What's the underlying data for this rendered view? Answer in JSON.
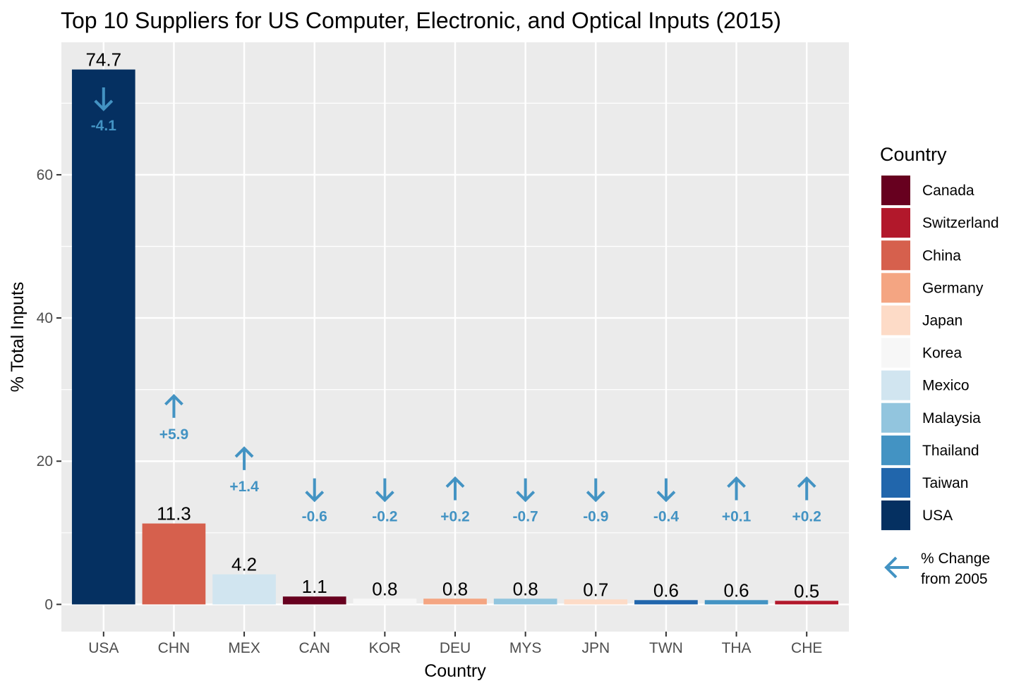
{
  "chart_data": {
    "type": "bar",
    "title": "Top 10 Suppliers for US Computer, Electronic, and Optical Inputs (2015)",
    "xlabel": "Country",
    "ylabel": "% Total Inputs",
    "ylim": [
      -3.8,
      78.5
    ],
    "yticks": [
      0,
      20,
      40,
      60
    ],
    "grid": true,
    "categories": [
      "USA",
      "CHN",
      "MEX",
      "CAN",
      "KOR",
      "DEU",
      "MYS",
      "JPN",
      "TWN",
      "THA",
      "CHE"
    ],
    "values": [
      74.7,
      11.3,
      4.2,
      1.1,
      0.8,
      0.8,
      0.8,
      0.7,
      0.6,
      0.6,
      0.5
    ],
    "value_labels": [
      "74.7",
      "11.3",
      "4.2",
      "1.1",
      "0.8",
      "0.8",
      "0.8",
      "0.7",
      "0.6",
      "0.6",
      "0.5"
    ],
    "fill_country": [
      "USA",
      "China",
      "Mexico",
      "Canada",
      "Korea",
      "Germany",
      "Malaysia",
      "Japan",
      "Taiwan",
      "Thailand",
      "Switzerland"
    ],
    "change_from_2005": [
      "-4.1",
      "+5.9",
      "+1.4",
      "-0.6",
      "-0.2",
      "+0.2",
      "-0.7",
      "-0.9",
      "-0.4",
      "+0.1",
      "+0.2"
    ],
    "change_direction": [
      "down",
      "up",
      "up",
      "down",
      "down",
      "up",
      "down",
      "down",
      "down",
      "up",
      "up"
    ],
    "change_marker_y": [
      66.2,
      23.1,
      15.8,
      11.6,
      11.6,
      11.6,
      11.6,
      11.6,
      11.6,
      11.6,
      11.6
    ],
    "legend": {
      "title": "Country",
      "position": "right",
      "entries": [
        {
          "name": "Canada",
          "color": "#67001f"
        },
        {
          "name": "Switzerland",
          "color": "#b2182b"
        },
        {
          "name": "China",
          "color": "#d6604d"
        },
        {
          "name": "Germany",
          "color": "#f4a582"
        },
        {
          "name": "Japan",
          "color": "#fddbc7"
        },
        {
          "name": "Korea",
          "color": "#f7f7f7"
        },
        {
          "name": "Mexico",
          "color": "#d1e5f0"
        },
        {
          "name": "Malaysia",
          "color": "#92c5de"
        },
        {
          "name": "Thailand",
          "color": "#4393c3"
        },
        {
          "name": "Taiwan",
          "color": "#2166ac"
        },
        {
          "name": "USA",
          "color": "#053061"
        }
      ],
      "arrow_note": "% Change\nfrom 2005",
      "arrow_icon": "left-arrow-icon"
    },
    "colors": {
      "panel": "#ebebeb",
      "grid": "#ffffff",
      "arrow": "#4393c3",
      "tick": "#333333"
    }
  }
}
